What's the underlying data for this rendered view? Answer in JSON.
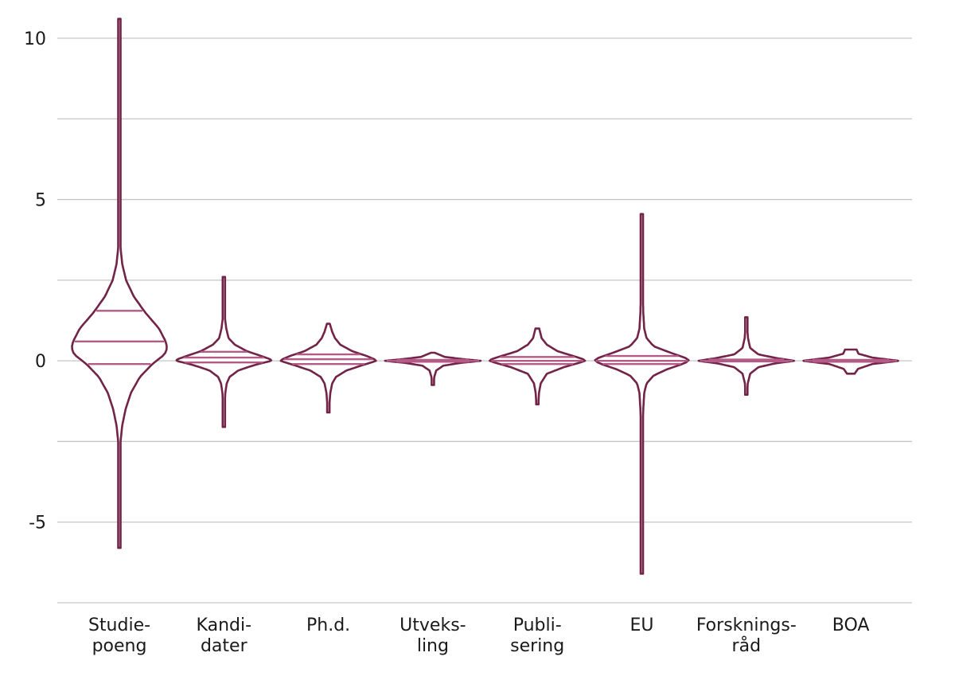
{
  "chart_data": {
    "type": "violin",
    "title": "",
    "xlabel": "",
    "ylabel": "",
    "ylim": [
      -7.5,
      10.0
    ],
    "yticks": [
      -7.5,
      -5,
      -2.5,
      0,
      2.5,
      5,
      7.5,
      10
    ],
    "ytick_labels": [
      "",
      "-5",
      "",
      "0",
      "",
      "5",
      "",
      "10"
    ],
    "grid": true,
    "colors": {
      "outline": "#722348",
      "quartile": "#b35a86",
      "grid": "#c6c6c6",
      "text": "#1a1a1a"
    },
    "categories": [
      {
        "label": [
          "Studie-",
          "poeng"
        ],
        "min": -5.8,
        "max": 10.6,
        "q1": -0.1,
        "median": 0.6,
        "q3": 1.55,
        "profile": [
          [
            -5.8,
            0.002
          ],
          [
            -5.3,
            0.006
          ],
          [
            -4.5,
            0.008
          ],
          [
            -3.8,
            0.006
          ],
          [
            -3.2,
            0.012
          ],
          [
            -2.5,
            0.025
          ],
          [
            -2.0,
            0.06
          ],
          [
            -1.5,
            0.13
          ],
          [
            -1.0,
            0.24
          ],
          [
            -0.5,
            0.43
          ],
          [
            -0.1,
            0.69
          ],
          [
            0.2,
            0.95
          ],
          [
            0.4,
            1.0
          ],
          [
            0.6,
            0.97
          ],
          [
            1.0,
            0.83
          ],
          [
            1.5,
            0.54
          ],
          [
            2.0,
            0.3
          ],
          [
            2.5,
            0.14
          ],
          [
            3.0,
            0.06
          ],
          [
            3.5,
            0.025
          ],
          [
            4.0,
            0.015
          ],
          [
            4.5,
            0.01
          ],
          [
            5.0,
            0.005
          ],
          [
            6.0,
            0.004
          ],
          [
            7.0,
            0.003
          ],
          [
            8.0,
            0.004
          ],
          [
            9.0,
            0.002
          ],
          [
            10.6,
            0.002
          ]
        ]
      },
      {
        "label": [
          "Kandi-",
          "dater"
        ],
        "min": -2.05,
        "max": 2.6,
        "q1": -0.05,
        "median": 0.1,
        "q3": 0.28,
        "profile": [
          [
            -2.05,
            0.01
          ],
          [
            -1.7,
            0.015
          ],
          [
            -1.3,
            0.02
          ],
          [
            -1.0,
            0.03
          ],
          [
            -0.7,
            0.06
          ],
          [
            -0.5,
            0.12
          ],
          [
            -0.3,
            0.3
          ],
          [
            -0.15,
            0.6
          ],
          [
            -0.05,
            0.85
          ],
          [
            0.0,
            1.0
          ],
          [
            0.05,
            0.97
          ],
          [
            0.15,
            0.78
          ],
          [
            0.3,
            0.48
          ],
          [
            0.5,
            0.23
          ],
          [
            0.7,
            0.1
          ],
          [
            1.0,
            0.05
          ],
          [
            1.3,
            0.025
          ],
          [
            1.7,
            0.02
          ],
          [
            2.1,
            0.015
          ],
          [
            2.6,
            0.008
          ]
        ]
      },
      {
        "label": [
          "Ph.d."
        ],
        "min": -1.6,
        "max": 1.15,
        "q1": -0.1,
        "median": 0.05,
        "q3": 0.2,
        "profile": [
          [
            -1.6,
            0.02
          ],
          [
            -1.3,
            0.025
          ],
          [
            -1.0,
            0.04
          ],
          [
            -0.7,
            0.08
          ],
          [
            -0.5,
            0.16
          ],
          [
            -0.3,
            0.38
          ],
          [
            -0.15,
            0.68
          ],
          [
            -0.05,
            0.9
          ],
          [
            0.0,
            1.0
          ],
          [
            0.05,
            0.96
          ],
          [
            0.15,
            0.8
          ],
          [
            0.3,
            0.5
          ],
          [
            0.5,
            0.25
          ],
          [
            0.7,
            0.14
          ],
          [
            0.9,
            0.08
          ],
          [
            1.15,
            0.03
          ]
        ]
      },
      {
        "label": [
          "Utveks-",
          "ling"
        ],
        "min": -0.75,
        "max": 0.25,
        "q1": -0.03,
        "median": 0.0,
        "q3": 0.03,
        "profile": [
          [
            -0.75,
            0.015
          ],
          [
            -0.5,
            0.03
          ],
          [
            -0.3,
            0.07
          ],
          [
            -0.15,
            0.22
          ],
          [
            -0.06,
            0.6
          ],
          [
            0.0,
            1.0
          ],
          [
            0.05,
            0.65
          ],
          [
            0.12,
            0.25
          ],
          [
            0.25,
            0.04
          ]
        ]
      },
      {
        "label": [
          "Publi-",
          "sering"
        ],
        "min": -1.35,
        "max": 1.0,
        "q1": -0.1,
        "median": 0.0,
        "q3": 0.12,
        "profile": [
          [
            -1.35,
            0.02
          ],
          [
            -1.0,
            0.035
          ],
          [
            -0.7,
            0.07
          ],
          [
            -0.4,
            0.2
          ],
          [
            -0.2,
            0.55
          ],
          [
            -0.05,
            0.9
          ],
          [
            0.0,
            1.0
          ],
          [
            0.05,
            0.96
          ],
          [
            0.15,
            0.75
          ],
          [
            0.3,
            0.42
          ],
          [
            0.5,
            0.2
          ],
          [
            0.7,
            0.09
          ],
          [
            1.0,
            0.04
          ]
        ]
      },
      {
        "label": [
          "EU"
        ],
        "min": -6.6,
        "max": 4.55,
        "q1": -0.1,
        "median": 0.0,
        "q3": 0.15,
        "profile": [
          [
            -6.6,
            0.005
          ],
          [
            -5.5,
            0.008
          ],
          [
            -4.0,
            0.01
          ],
          [
            -3.0,
            0.015
          ],
          [
            -2.0,
            0.02
          ],
          [
            -1.5,
            0.03
          ],
          [
            -1.0,
            0.05
          ],
          [
            -0.7,
            0.1
          ],
          [
            -0.45,
            0.25
          ],
          [
            -0.25,
            0.55
          ],
          [
            -0.1,
            0.85
          ],
          [
            0.0,
            1.0
          ],
          [
            0.1,
            0.9
          ],
          [
            0.25,
            0.6
          ],
          [
            0.45,
            0.25
          ],
          [
            0.7,
            0.1
          ],
          [
            1.0,
            0.05
          ],
          [
            1.5,
            0.03
          ],
          [
            2.0,
            0.02
          ],
          [
            3.0,
            0.01
          ],
          [
            4.55,
            0.005
          ]
        ]
      },
      {
        "label": [
          "Forsknings-",
          "råd"
        ],
        "min": -1.05,
        "max": 1.35,
        "q1": -0.02,
        "median": 0.0,
        "q3": 0.04,
        "profile": [
          [
            -1.05,
            0.015
          ],
          [
            -0.7,
            0.03
          ],
          [
            -0.4,
            0.08
          ],
          [
            -0.2,
            0.25
          ],
          [
            -0.08,
            0.6
          ],
          [
            0.0,
            1.0
          ],
          [
            0.08,
            0.65
          ],
          [
            0.2,
            0.25
          ],
          [
            0.4,
            0.08
          ],
          [
            0.7,
            0.035
          ],
          [
            1.0,
            0.02
          ],
          [
            1.35,
            0.01
          ]
        ]
      },
      {
        "label": [
          "BOA"
        ],
        "min": -0.4,
        "max": 0.35,
        "q1": -0.03,
        "median": 0.0,
        "q3": 0.03,
        "profile": [
          [
            -0.4,
            0.08
          ],
          [
            -0.25,
            0.15
          ],
          [
            -0.1,
            0.45
          ],
          [
            0.0,
            1.0
          ],
          [
            0.1,
            0.45
          ],
          [
            0.22,
            0.16
          ],
          [
            0.35,
            0.12
          ]
        ]
      }
    ]
  }
}
